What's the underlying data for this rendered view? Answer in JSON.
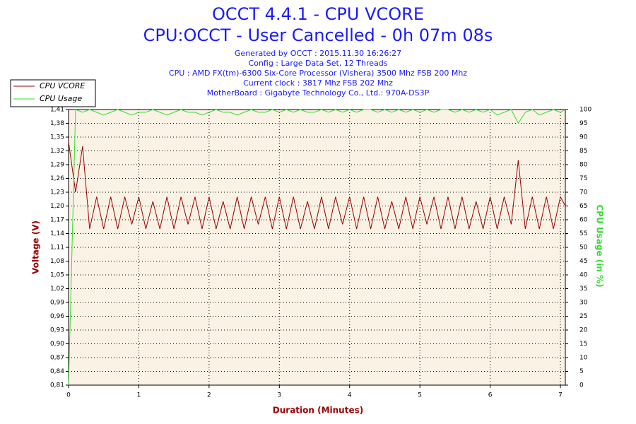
{
  "chart_data": {
    "type": "line",
    "title": "OCCT 4.4.1 - CPU VCORE",
    "subtitle": "CPU:OCCT - User Cancelled - 0h 07m 08s",
    "info": [
      "Generated by OCCT : 2015.11.30 16:26:27",
      "Config : Large Data Set, 12 Threads",
      "CPU : AMD FX(tm)-6300 Six-Core Processor (Vishera) 3500 Mhz FSB 200 Mhz",
      "Current clock : 3817 Mhz FSB 202 Mhz",
      "MotherBoard : Gigabyte Technology Co., Ltd.: 970A-DS3P"
    ],
    "xlabel": "Duration (Minutes)",
    "ylabel": "Voltage (V)",
    "y2label": "CPU Usage (in %)",
    "xlim": [
      0,
      7.07
    ],
    "xticks": [
      0,
      1,
      2,
      3,
      4,
      5,
      6,
      7
    ],
    "ylim": [
      0.81,
      1.41
    ],
    "yticks": [
      {
        "value": 0.81,
        "label": "0,81"
      },
      {
        "value": 0.84,
        "label": "0,84"
      },
      {
        "value": 0.87,
        "label": "0,87"
      },
      {
        "value": 0.9,
        "label": "0,90"
      },
      {
        "value": 0.93,
        "label": "0,93"
      },
      {
        "value": 0.96,
        "label": "0,96"
      },
      {
        "value": 0.99,
        "label": "0,99"
      },
      {
        "value": 1.02,
        "label": "1,02"
      },
      {
        "value": 1.05,
        "label": "1,05"
      },
      {
        "value": 1.08,
        "label": "1,08"
      },
      {
        "value": 1.11,
        "label": "1,11"
      },
      {
        "value": 1.14,
        "label": "1,14"
      },
      {
        "value": 1.17,
        "label": "1,17"
      },
      {
        "value": 1.2,
        "label": "1,20"
      },
      {
        "value": 1.23,
        "label": "1,23"
      },
      {
        "value": 1.26,
        "label": "1,26"
      },
      {
        "value": 1.29,
        "label": "1,29"
      },
      {
        "value": 1.32,
        "label": "1,32"
      },
      {
        "value": 1.35,
        "label": "1,35"
      },
      {
        "value": 1.38,
        "label": "1,38"
      },
      {
        "value": 1.41,
        "label": "1,41"
      }
    ],
    "y2lim": [
      0,
      100
    ],
    "y2ticks": [
      0,
      5,
      10,
      15,
      20,
      25,
      30,
      35,
      40,
      45,
      50,
      55,
      60,
      65,
      70,
      75,
      80,
      85,
      90,
      95,
      100
    ],
    "grid": true,
    "x": [
      0,
      0.1,
      0.2,
      0.3,
      0.4,
      0.5,
      0.6,
      0.7,
      0.8,
      0.9,
      1,
      1.1,
      1.2,
      1.3,
      1.4,
      1.5,
      1.6,
      1.7,
      1.8,
      1.9,
      2,
      2.1,
      2.2,
      2.3,
      2.4,
      2.5,
      2.6,
      2.7,
      2.8,
      2.9,
      3,
      3.1,
      3.2,
      3.3,
      3.4,
      3.5,
      3.6,
      3.7,
      3.8,
      3.9,
      4,
      4.1,
      4.2,
      4.3,
      4.4,
      4.5,
      4.6,
      4.7,
      4.8,
      4.9,
      5,
      5.1,
      5.2,
      5.3,
      5.4,
      5.5,
      5.6,
      5.7,
      5.8,
      5.9,
      6,
      6.1,
      6.2,
      6.3,
      6.4,
      6.5,
      6.6,
      6.7,
      6.8,
      6.9,
      7,
      7.07
    ],
    "series": [
      {
        "name": "CPU VCORE",
        "color": "#990000",
        "values": [
          1.34,
          1.23,
          1.33,
          1.15,
          1.22,
          1.15,
          1.22,
          1.15,
          1.22,
          1.16,
          1.22,
          1.15,
          1.21,
          1.15,
          1.22,
          1.15,
          1.22,
          1.16,
          1.22,
          1.15,
          1.22,
          1.15,
          1.21,
          1.15,
          1.22,
          1.15,
          1.22,
          1.16,
          1.22,
          1.15,
          1.22,
          1.15,
          1.22,
          1.15,
          1.21,
          1.15,
          1.22,
          1.15,
          1.22,
          1.16,
          1.22,
          1.15,
          1.22,
          1.15,
          1.22,
          1.15,
          1.21,
          1.15,
          1.22,
          1.15,
          1.22,
          1.16,
          1.22,
          1.15,
          1.22,
          1.15,
          1.22,
          1.15,
          1.21,
          1.15,
          1.22,
          1.15,
          1.22,
          1.16,
          1.3,
          1.15,
          1.22,
          1.15,
          1.22,
          1.15,
          1.22,
          1.2
        ]
      },
      {
        "name": "CPU Usage",
        "color": "#33dd33",
        "axis": "y2",
        "values": [
          0,
          100,
          99,
          100,
          99,
          98,
          99,
          100,
          99,
          98,
          99,
          99,
          100,
          99,
          98,
          99,
          100,
          99,
          99,
          98,
          99,
          100,
          99,
          99,
          98,
          99,
          100,
          99,
          99,
          100,
          99,
          100,
          99,
          100,
          99,
          99,
          100,
          99,
          100,
          99,
          100,
          99,
          100,
          100,
          99,
          100,
          99,
          100,
          99,
          100,
          99,
          100,
          99,
          100,
          100,
          99,
          100,
          99,
          100,
          99,
          100,
          98,
          99,
          100,
          95,
          99,
          100,
          98,
          99,
          100,
          99,
          100
        ]
      }
    ]
  }
}
